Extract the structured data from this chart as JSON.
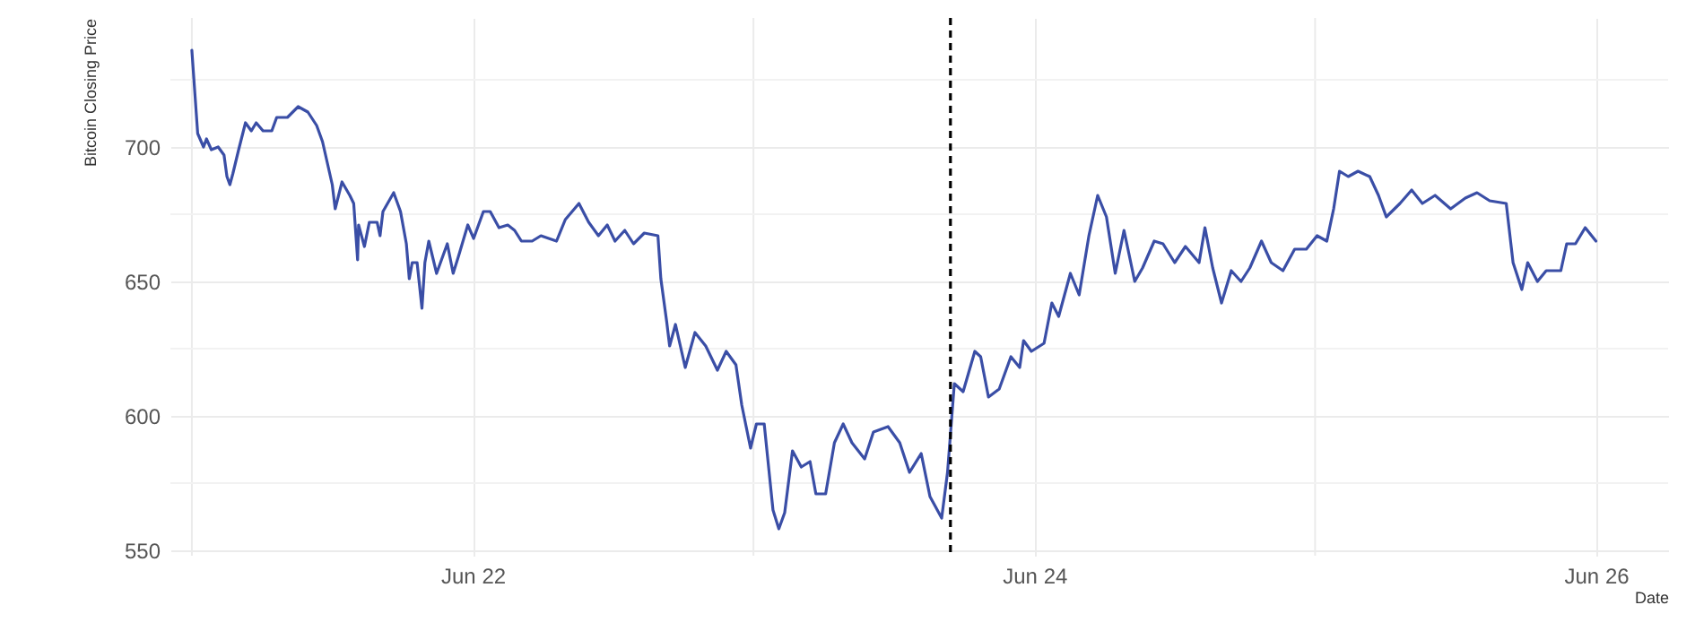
{
  "chart_data": {
    "type": "line",
    "xlabel": "Date",
    "ylabel": "Bitcoin Closing Price",
    "xlim": [
      "--06-20T22:10",
      "--06-26T06:10"
    ],
    "xticks": [
      {
        "value": "--06-21",
        "label": null
      },
      {
        "value": "--06-22",
        "label": "Jun 22"
      },
      {
        "value": "--06-23",
        "label": null
      },
      {
        "value": "--06-24",
        "label": "Jun 24"
      },
      {
        "value": "--06-25",
        "label": null
      },
      {
        "value": "--06-26",
        "label": "Jun 26"
      }
    ],
    "ylim": [
      548,
      748
    ],
    "yticks": [
      550,
      {
        "value": 575,
        "label": null
      },
      600,
      {
        "value": 625,
        "label": null
      },
      650,
      {
        "value": 675,
        "label": null
      },
      700,
      {
        "value": 725,
        "label": null
      }
    ],
    "grid": true,
    "marker": "none",
    "line_style": "solid",
    "x": [
      "--06-21T00:00",
      "--06-21T00:30",
      "--06-21T01:00",
      "--06-21T01:15",
      "--06-21T01:40",
      "--06-21T02:15",
      "--06-21T02:45",
      "--06-21T03:00",
      "--06-21T03:15",
      "--06-21T03:30",
      "--06-21T04:00",
      "--06-21T04:35",
      "--06-21T05:05",
      "--06-21T05:30",
      "--06-21T06:05",
      "--06-21T06:50",
      "--06-21T07:15",
      "--06-21T08:10",
      "--06-21T09:05",
      "--06-21T09:55",
      "--06-21T10:40",
      "--06-21T11:10",
      "--06-21T11:35",
      "--06-21T12:00",
      "--06-21T12:15",
      "--06-21T12:50",
      "--06-21T13:30",
      "--06-21T13:50",
      "--06-21T14:10",
      "--06-21T14:15",
      "--06-21T14:45",
      "--06-21T15:10",
      "--06-21T15:50",
      "--06-21T16:05",
      "--06-21T16:20",
      "--06-21T17:15",
      "--06-21T17:50",
      "--06-21T18:20",
      "--06-21T18:35",
      "--06-21T18:50",
      "--06-21T19:15",
      "--06-21T19:40",
      "--06-21T19:55",
      "--06-21T20:15",
      "--06-21T20:55",
      "--06-21T21:50",
      "--06-21T22:20",
      "--06-21T22:50",
      "--06-21T23:35",
      "--06-22T00:05",
      "--06-22T00:55",
      "--06-22T01:30",
      "--06-22T02:15",
      "--06-22T03:00",
      "--06-22T03:35",
      "--06-22T04:10",
      "--06-22T05:05",
      "--06-22T05:50",
      "--06-22T07:10",
      "--06-22T07:55",
      "--06-22T09:05",
      "--06-22T09:55",
      "--06-22T10:45",
      "--06-22T11:30",
      "--06-22T12:10",
      "--06-22T13:00",
      "--06-22T13:45",
      "--06-22T14:40",
      "--06-22T15:50",
      "--06-22T16:05",
      "--06-22T16:35",
      "--06-22T16:50",
      "--06-22T17:20",
      "--06-22T18:10",
      "--06-22T19:00",
      "--06-22T19:55",
      "--06-22T20:55",
      "--06-22T21:40",
      "--06-22T22:30",
      "--06-22T23:00",
      "--06-22T23:45",
      "--06-23T00:15",
      "--06-23T00:55",
      "--06-23T01:40",
      "--06-23T02:10",
      "--06-23T02:40",
      "--06-23T03:20",
      "--06-23T04:05",
      "--06-23T04:50",
      "--06-23T05:20",
      "--06-23T06:10",
      "--06-23T06:55",
      "--06-23T07:40",
      "--06-23T08:25",
      "--06-23T09:30",
      "--06-23T10:15",
      "--06-23T11:30",
      "--06-23T12:30",
      "--06-23T13:20",
      "--06-23T14:20",
      "--06-23T15:05",
      "--06-23T16:05",
      "--06-23T16:35",
      "--06-23T17:10",
      "--06-23T17:55",
      "--06-23T18:55",
      "--06-23T19:25",
      "--06-23T20:05",
      "--06-23T21:00",
      "--06-23T22:00",
      "--06-23T22:45",
      "--06-23T23:05",
      "--06-23T23:45",
      "--06-24T00:50",
      "--06-24T01:30",
      "--06-24T02:05",
      "--06-24T03:05",
      "--06-24T03:50",
      "--06-24T04:40",
      "--06-24T05:25",
      "--06-24T06:10",
      "--06-24T06:55",
      "--06-24T07:40",
      "--06-24T08:35",
      "--06-24T09:15",
      "--06-24T10:15",
      "--06-24T11:00",
      "--06-24T12:00",
      "--06-24T12:55",
      "--06-24T14:05",
      "--06-24T14:35",
      "--06-24T15:15",
      "--06-24T16:00",
      "--06-24T16:50",
      "--06-24T17:40",
      "--06-24T18:25",
      "--06-24T19:25",
      "--06-24T20:15",
      "--06-24T21:15",
      "--06-24T22:15",
      "--06-24T23:15",
      "--06-25T00:10",
      "--06-25T01:00",
      "--06-25T01:35",
      "--06-25T02:05",
      "--06-25T02:50",
      "--06-25T03:40",
      "--06-25T04:40",
      "--06-25T05:25",
      "--06-25T06:05",
      "--06-25T07:15",
      "--06-25T08:15",
      "--06-25T09:10",
      "--06-25T10:15",
      "--06-25T11:35",
      "--06-25T12:50",
      "--06-25T13:50",
      "--06-25T14:55",
      "--06-25T16:20",
      "--06-25T16:55",
      "--06-25T17:40",
      "--06-25T18:10",
      "--06-25T19:00",
      "--06-25T19:45",
      "--06-25T21:00",
      "--06-25T21:30",
      "--06-25T22:15",
      "--06-25T23:05",
      "--06-26T00:00"
    ],
    "series": [
      {
        "color": "#3a4ea6",
        "values": [
          736,
          705,
          700,
          703,
          699,
          700,
          697,
          689,
          686,
          690,
          699,
          709,
          706,
          709,
          706,
          706,
          711,
          711,
          715,
          713,
          708,
          702,
          694,
          686,
          677,
          687,
          682,
          679,
          658,
          671,
          663,
          672,
          672,
          667,
          676,
          683,
          676,
          664,
          651,
          657,
          657,
          640,
          657,
          665,
          653,
          664,
          653,
          660,
          671,
          666,
          676,
          676,
          670,
          671,
          669,
          665,
          665,
          667,
          665,
          673,
          679,
          672,
          667,
          671,
          665,
          669,
          664,
          668,
          667,
          651,
          635,
          626,
          634,
          618,
          631,
          626,
          617,
          624,
          619,
          604,
          588,
          597,
          597,
          565,
          558,
          564,
          587,
          581,
          583,
          571,
          571,
          590,
          597,
          590,
          584,
          594,
          596,
          590,
          579,
          586,
          570,
          562,
          579,
          612,
          609,
          624,
          622,
          607,
          610,
          622,
          618,
          628,
          624,
          627,
          642,
          637,
          653,
          645,
          667,
          682,
          674,
          653,
          669,
          650,
          655,
          665,
          664,
          657,
          663,
          657,
          670,
          655,
          642,
          654,
          650,
          655,
          665,
          657,
          654,
          662,
          662,
          667,
          665,
          677,
          691,
          689,
          691,
          689,
          682,
          674,
          679,
          684,
          679,
          682,
          677,
          681,
          683,
          680,
          679,
          657,
          647,
          657,
          650,
          654,
          654,
          664,
          664,
          670,
          665
        ]
      }
    ],
    "ref_lines": [
      {
        "axis": "x",
        "value": "--06-23T16:50",
        "color": "#000000",
        "line_style": "dashed"
      }
    ]
  }
}
